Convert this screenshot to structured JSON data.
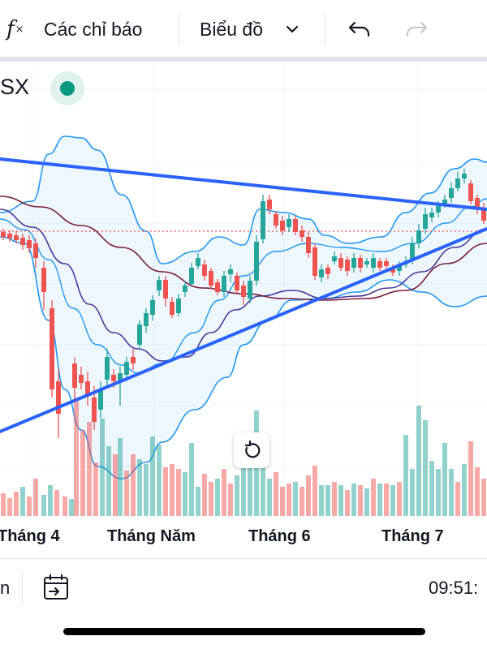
{
  "toolbar": {
    "indicators_label": "Các chỉ báo",
    "chart_type_label": "Biểu đồ",
    "icons": [
      "function-icon",
      "chevron-down-icon",
      "undo-icon",
      "redo-icon"
    ]
  },
  "symbol": {
    "ticker_visible": "SX",
    "market_status_color": "#089981"
  },
  "time_axis": {
    "labels": [
      "Tháng 4",
      "Tháng Năm",
      "Tháng 6",
      "Tháng 7"
    ]
  },
  "bottom_bar": {
    "left_text": "n",
    "time": "09:51:"
  },
  "colors": {
    "up": "#26a69a",
    "down": "#ef5350",
    "trendline": "#2962ff",
    "bollinger": "#2196f3",
    "ma_purple": "#4a3a9a",
    "ma_maroon": "#7b1f3f"
  },
  "chart_data": {
    "type": "candlestick",
    "x_labels": [
      "Tháng 4",
      "Tháng Năm",
      "Tháng 6",
      "Tháng 7"
    ],
    "overlays": [
      "Bollinger Bands",
      "moving averages",
      "trendlines",
      "volume"
    ],
    "grid": true,
    "note": "price axis not visible; values are relative"
  }
}
